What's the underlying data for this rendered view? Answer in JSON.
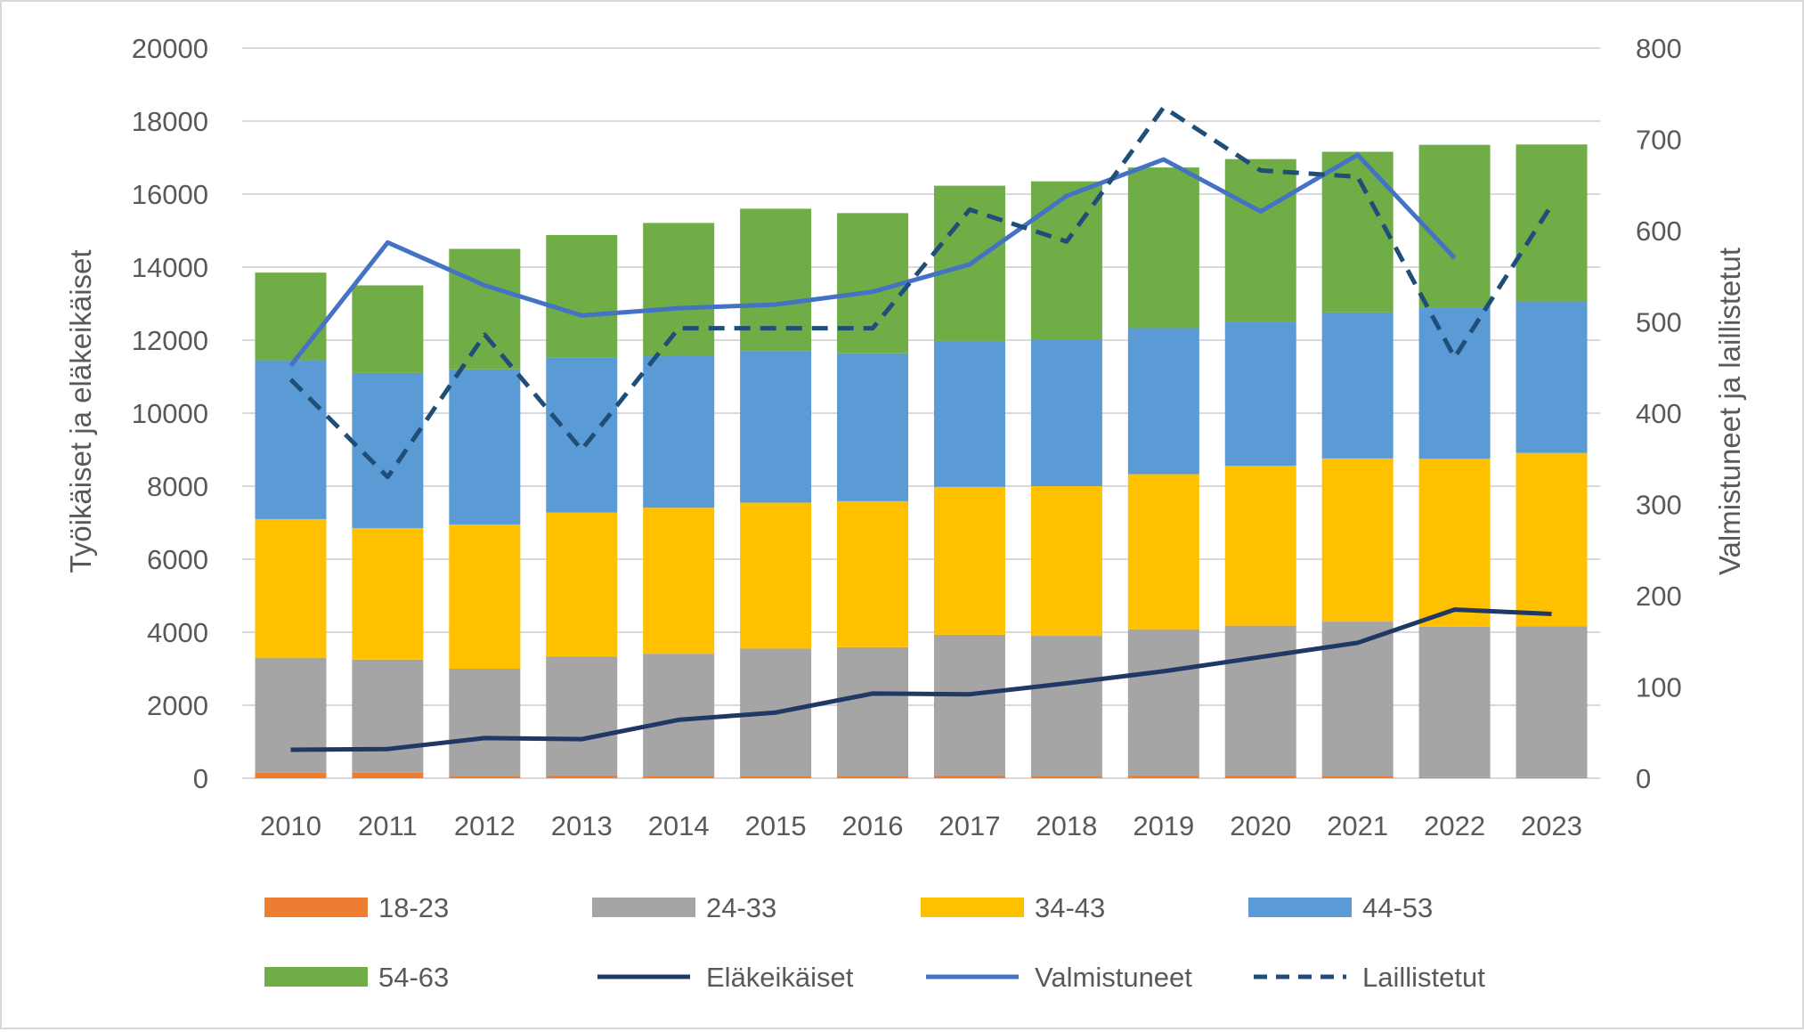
{
  "chart_data": {
    "type": "bar",
    "stacked": true,
    "categories": [
      "2010",
      "2011",
      "2012",
      "2013",
      "2014",
      "2015",
      "2016",
      "2017",
      "2018",
      "2019",
      "2020",
      "2021",
      "2022",
      "2023"
    ],
    "ylabel": "Työikäiset ja eläkeikäiset",
    "y2label": "Valmistuneet ja laillistetut",
    "ylim": [
      0,
      20000
    ],
    "y2lim": [
      0,
      800
    ],
    "yticks": [
      "0",
      "2000",
      "4000",
      "6000",
      "8000",
      "10000",
      "12000",
      "14000",
      "16000",
      "18000",
      "20000"
    ],
    "y2ticks": [
      "0",
      "100",
      "200",
      "300",
      "400",
      "500",
      "600",
      "700",
      "800"
    ],
    "grid": true,
    "legend_position": "bottom",
    "series": [
      {
        "name": "18-23",
        "type": "bar",
        "axis": "left",
        "color": "#ED7D31",
        "values": [
          150,
          150,
          50,
          80,
          60,
          50,
          60,
          80,
          50,
          80,
          80,
          60,
          30,
          30
        ]
      },
      {
        "name": "24-33",
        "type": "bar",
        "axis": "left",
        "color": "#A5A5A5",
        "values": [
          3150,
          3100,
          2950,
          3250,
          3350,
          3500,
          3530,
          3850,
          3850,
          4000,
          4100,
          4230,
          4120,
          4130
        ]
      },
      {
        "name": "34-43",
        "type": "bar",
        "axis": "left",
        "color": "#FFC000",
        "values": [
          3800,
          3600,
          3950,
          3950,
          4000,
          4000,
          4000,
          4050,
          4100,
          4250,
          4380,
          4470,
          4600,
          4750
        ]
      },
      {
        "name": "44-53",
        "type": "bar",
        "axis": "left",
        "color": "#5B9BD5",
        "values": [
          4350,
          4250,
          4250,
          4250,
          4150,
          4150,
          4050,
          4000,
          4000,
          4000,
          3950,
          4000,
          4150,
          4150
        ]
      },
      {
        "name": "54-63",
        "type": "bar",
        "axis": "left",
        "color": "#70AD47",
        "values": [
          2400,
          2400,
          3300,
          3350,
          3650,
          3900,
          3840,
          4250,
          4350,
          4400,
          4450,
          4400,
          4450,
          4300
        ]
      },
      {
        "name": "Eläkeikäiset",
        "type": "line",
        "axis": "left",
        "color": "#203864",
        "dash": false,
        "values": [
          780,
          800,
          1100,
          1070,
          1600,
          1800,
          2320,
          2300,
          2600,
          2930,
          3320,
          3710,
          4620,
          4500
        ]
      },
      {
        "name": "Valmistuneet",
        "type": "line",
        "axis": "right",
        "color": "#4472C4",
        "dash": false,
        "values": [
          452,
          587,
          540,
          507,
          515,
          519,
          533,
          563,
          638,
          678,
          621,
          683,
          570,
          null
        ]
      },
      {
        "name": "Laillistetut",
        "type": "line",
        "axis": "right",
        "color": "#1F4E79",
        "dash": true,
        "values": [
          437,
          330,
          486,
          360,
          493,
          493,
          493,
          623,
          588,
          735,
          666,
          659,
          461,
          628
        ]
      }
    ]
  }
}
